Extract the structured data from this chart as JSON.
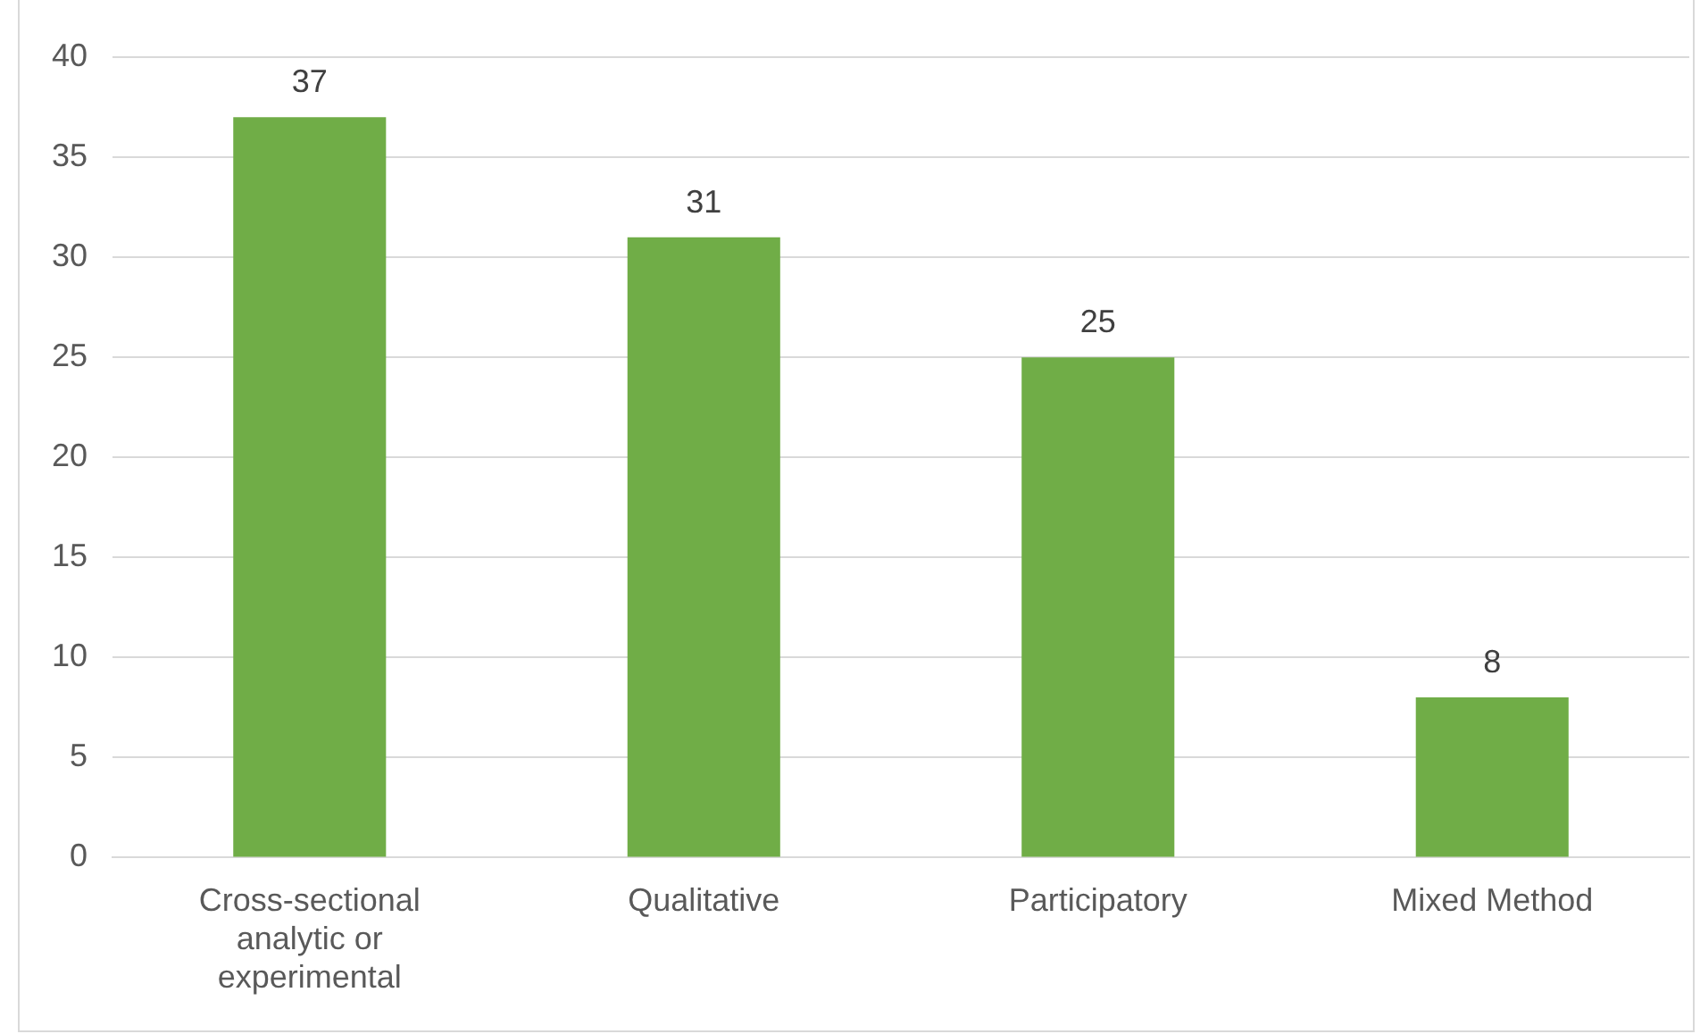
{
  "chart_data": {
    "type": "bar",
    "categories": [
      "Cross-sectional analytic or experimental",
      "Qualitative",
      "Participatory",
      "Mixed Method"
    ],
    "values": [
      37,
      31,
      25,
      8
    ],
    "color": "#70ad47",
    "ylim": [
      0,
      40
    ],
    "yticks": [
      0,
      5,
      10,
      15,
      20,
      25,
      30,
      35,
      40
    ],
    "grid": "y",
    "data_labels": true,
    "legend": false
  }
}
